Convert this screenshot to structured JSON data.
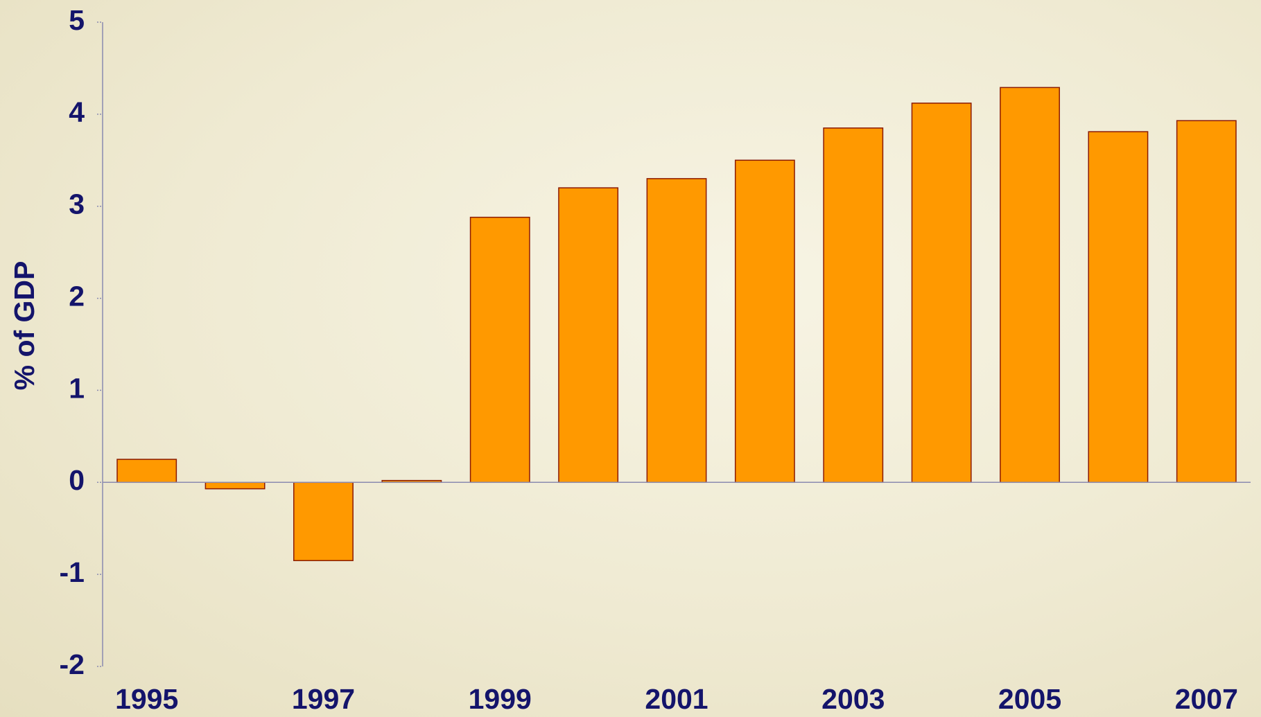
{
  "chart_data": {
    "type": "bar",
    "y_label": "% of GDP",
    "categories": [
      "1995",
      null,
      "1997",
      null,
      "1999",
      null,
      "2001",
      null,
      "2003",
      null,
      "2005",
      null,
      "2007"
    ],
    "values": [
      0.25,
      -0.07,
      -0.85,
      0.02,
      2.88,
      3.2,
      3.3,
      3.5,
      3.85,
      4.12,
      4.29,
      3.81,
      3.93
    ],
    "color": "#ff9900",
    "edge_color": "#8b1a00",
    "ylim": [
      -2,
      5
    ],
    "yticks": [
      -2,
      -1,
      0,
      1,
      2,
      3,
      4,
      5
    ],
    "grid": false
  }
}
